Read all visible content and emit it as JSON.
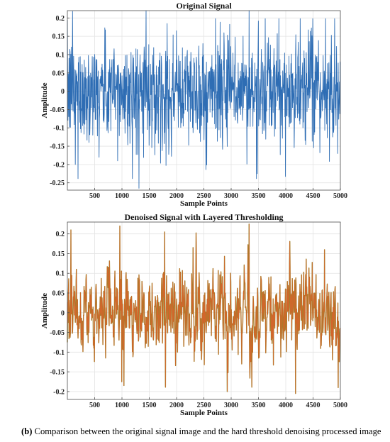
{
  "chart_data": [
    {
      "type": "line",
      "title": "Original Signal",
      "xlabel": "Sample Points",
      "ylabel": "Amplitude",
      "xlim": [
        0,
        5000
      ],
      "ylim": [
        -0.27,
        0.22
      ],
      "xticks": [
        500,
        1000,
        1500,
        2000,
        2500,
        3000,
        3500,
        4000,
        4500,
        5000
      ],
      "yticks": [
        -0.25,
        -0.2,
        -0.15,
        -0.1,
        -0.05,
        0,
        0.05,
        0.1,
        0.15,
        0.2
      ],
      "ytick_labels": [
        "-0.25",
        "-0.2",
        "-0.15",
        "-0.1",
        "-0.05",
        "0",
        "0.05",
        "0.1",
        "0.15",
        "0.2"
      ],
      "grid": true,
      "line_color": "#2e6db4",
      "series_length": 5000,
      "amplitude_envelope": {
        "min": -0.265,
        "max": 0.22,
        "typical_std": 0.07
      },
      "notable_points": [
        {
          "x": 95,
          "y": 0.218
        },
        {
          "x": 145,
          "y": -0.2
        },
        {
          "x": 920,
          "y": -0.19
        },
        {
          "x": 1310,
          "y": -0.265
        },
        {
          "x": 1440,
          "y": 0.22
        },
        {
          "x": 3330,
          "y": 0.22
        },
        {
          "x": 3480,
          "y": -0.225
        },
        {
          "x": 4950,
          "y": -0.17
        }
      ]
    },
    {
      "type": "line",
      "title": "Denoised Signal with Layered Thresholding",
      "xlabel": "Sample Points",
      "ylabel": "Amplitude",
      "xlim": [
        0,
        5000
      ],
      "ylim": [
        -0.22,
        0.23
      ],
      "xticks": [
        500,
        1000,
        1500,
        2000,
        2500,
        3000,
        3500,
        4000,
        4500,
        5000
      ],
      "yticks": [
        -0.2,
        -0.15,
        -0.1,
        -0.05,
        0,
        0.05,
        0.1,
        0.15,
        0.2
      ],
      "ytick_labels": [
        "-0.2",
        "-0.15",
        "-0.1",
        "-0.05",
        "0",
        "0.05",
        "0.1",
        "0.15",
        "0.2"
      ],
      "grid": true,
      "line_color": "#d9622b",
      "line_color_2": "#8f8a2a",
      "series_length": 5000,
      "amplitude_envelope": {
        "min": -0.21,
        "max": 0.225,
        "typical_std": 0.06
      },
      "notable_points": [
        {
          "x": 65,
          "y": 0.21
        },
        {
          "x": 960,
          "y": 0.22
        },
        {
          "x": 995,
          "y": -0.175
        },
        {
          "x": 1780,
          "y": 0.205
        },
        {
          "x": 2930,
          "y": -0.2
        },
        {
          "x": 3330,
          "y": 0.225
        },
        {
          "x": 4180,
          "y": -0.205
        },
        {
          "x": 4960,
          "y": -0.19
        }
      ]
    }
  ],
  "caption": {
    "label": "(b)",
    "text": "Comparison between the original signal image and the hard threshold denoising processed image"
  }
}
